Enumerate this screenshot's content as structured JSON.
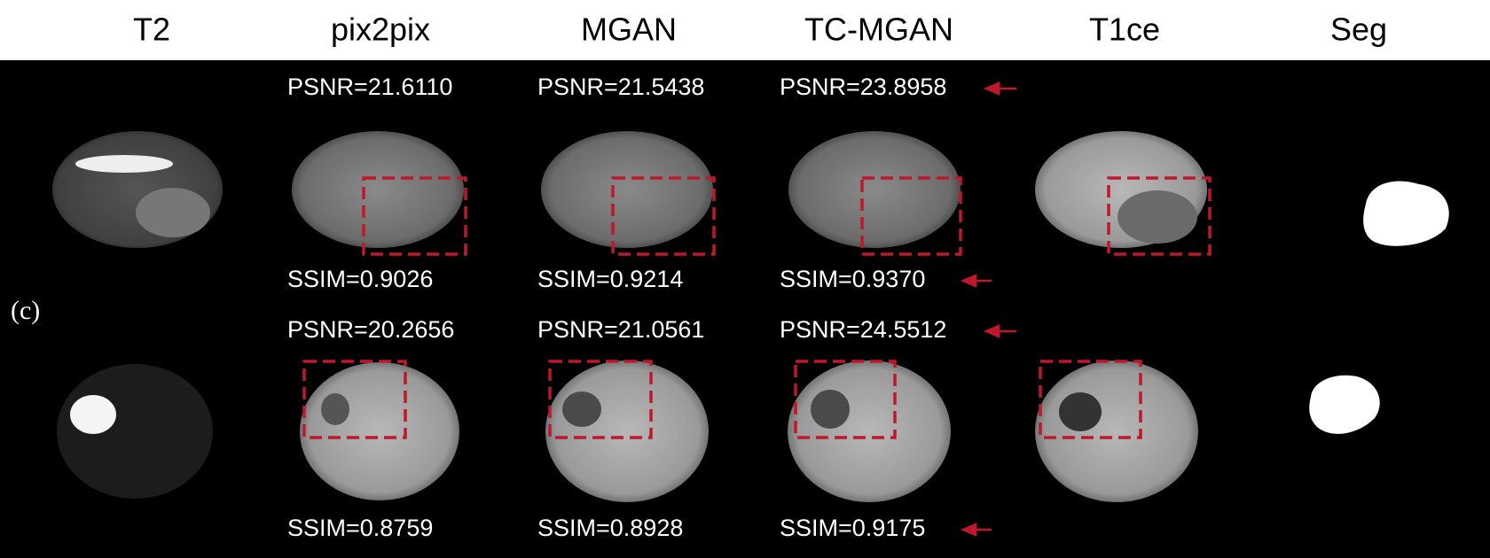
{
  "columns": [
    "T2",
    "pix2pix",
    "MGAN",
    "TC-MGAN",
    "T1ce",
    "Seg"
  ],
  "panel_label": "(c)",
  "rows": [
    {
      "psnr": [
        "PSNR=21.6110",
        "PSNR=21.5438",
        "PSNR=23.8958"
      ],
      "ssim": [
        "SSIM=0.9026",
        "SSIM=0.9214",
        "SSIM=0.9370"
      ]
    },
    {
      "psnr": [
        "PSNR=20.2656",
        "PSNR=21.0561",
        "PSNR=24.5512"
      ],
      "ssim": [
        "SSIM=0.8759",
        "SSIM=0.8928",
        "SSIM=0.9175"
      ]
    }
  ]
}
